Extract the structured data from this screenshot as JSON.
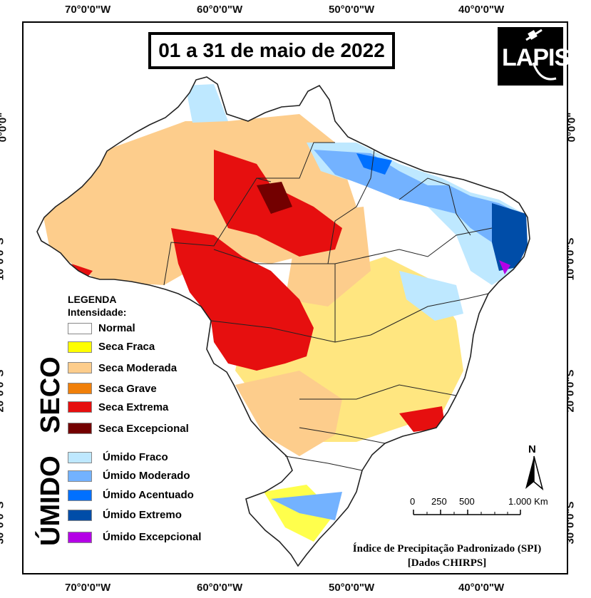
{
  "title": "01 a 31 de maio de 2022",
  "logo_text": "LAPIS",
  "axis": {
    "longitude_ticks": [
      "70°0'0\"W",
      "60°0'0\"W",
      "50°0'0\"W",
      "40°0'0\"W"
    ],
    "latitude_ticks": [
      "0°0'0\"",
      "10°0'0\"S",
      "20°0'0\"S",
      "30°0'0\"S"
    ]
  },
  "legend": {
    "heading": "LEGENDA",
    "subheading": "Intensidade:",
    "dry_group_label": "SECO",
    "wet_group_label": "ÚMIDO",
    "dry_items": [
      {
        "label": "Normal",
        "color": "#ffffff"
      },
      {
        "label": "Seca Fraca",
        "color": "#ffff00"
      },
      {
        "label": "Seca Moderada",
        "color": "#fdcd8c"
      },
      {
        "label": "Seca Grave",
        "color": "#f07f0a"
      },
      {
        "label": "Seca Extrema",
        "color": "#e60f0f"
      },
      {
        "label": "Seca Excepcional",
        "color": "#730000"
      }
    ],
    "wet_items": [
      {
        "label": "Úmido Fraco",
        "color": "#bee8ff"
      },
      {
        "label": "Úmido Moderado",
        "color": "#73b2ff"
      },
      {
        "label": "Úmido Acentuado",
        "color": "#0070ff"
      },
      {
        "label": "Úmido Extremo",
        "color": "#004da8"
      },
      {
        "label": "Úmido Excepcional",
        "color": "#b400e6"
      }
    ]
  },
  "scale_bar": {
    "labels": [
      "0",
      "250",
      "500",
      "1.000 Km"
    ]
  },
  "north_label": "N",
  "source": {
    "line1": "Índice de Precipitação Padronizado (SPI)",
    "line2": "[Dados CHIRPS]"
  }
}
